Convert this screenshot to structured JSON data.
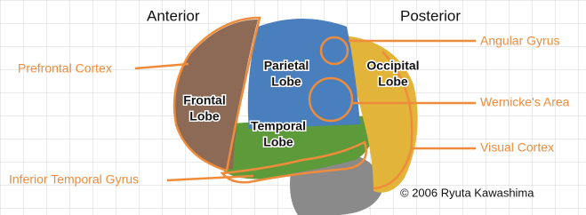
{
  "orientation": {
    "anterior": "Anterior",
    "posterior": "Posterior"
  },
  "lobes": [
    {
      "lines": [
        "Frontal",
        "Lobe"
      ]
    },
    {
      "lines": [
        "Parietal",
        "Lobe"
      ]
    },
    {
      "lines": [
        "Occipital",
        "Lobe"
      ]
    },
    {
      "lines": [
        "Temporal",
        "Lobe"
      ]
    }
  ],
  "callouts": [
    "Prefrontal Cortex",
    "Angular Gyrus",
    "Wernicke's Area",
    "Visual Cortex",
    "Inferior Temporal Gyrus"
  ],
  "credit": "© 2006 Ryuta Kawashima"
}
